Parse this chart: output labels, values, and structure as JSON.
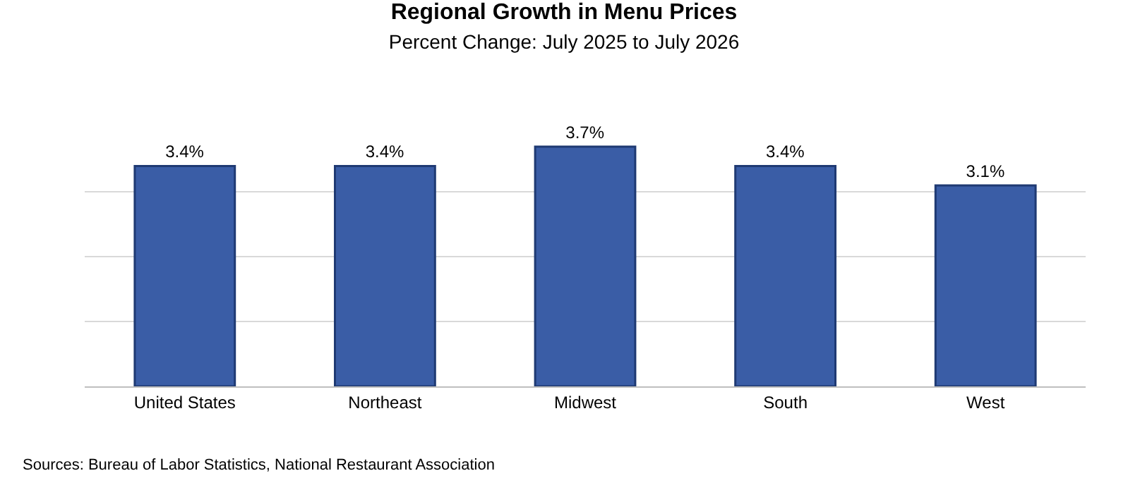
{
  "chart_data": {
    "type": "bar",
    "title": "Regional Growth in Menu Prices",
    "subtitle": "Percent Change: July 2025 to July 2026",
    "categories": [
      "United States",
      "Northeast",
      "Midwest",
      "South",
      "West"
    ],
    "values": [
      3.4,
      3.4,
      3.7,
      3.4,
      3.1
    ],
    "value_labels": [
      "3.4%",
      "3.4%",
      "3.7%",
      "3.4%",
      "3.1%"
    ],
    "color": "#3a5da6",
    "grid": "y",
    "tick_labels": "x",
    "annotations": [
      "Sources: Bureau of Labor Statistics, National Restaurant Association"
    ]
  }
}
